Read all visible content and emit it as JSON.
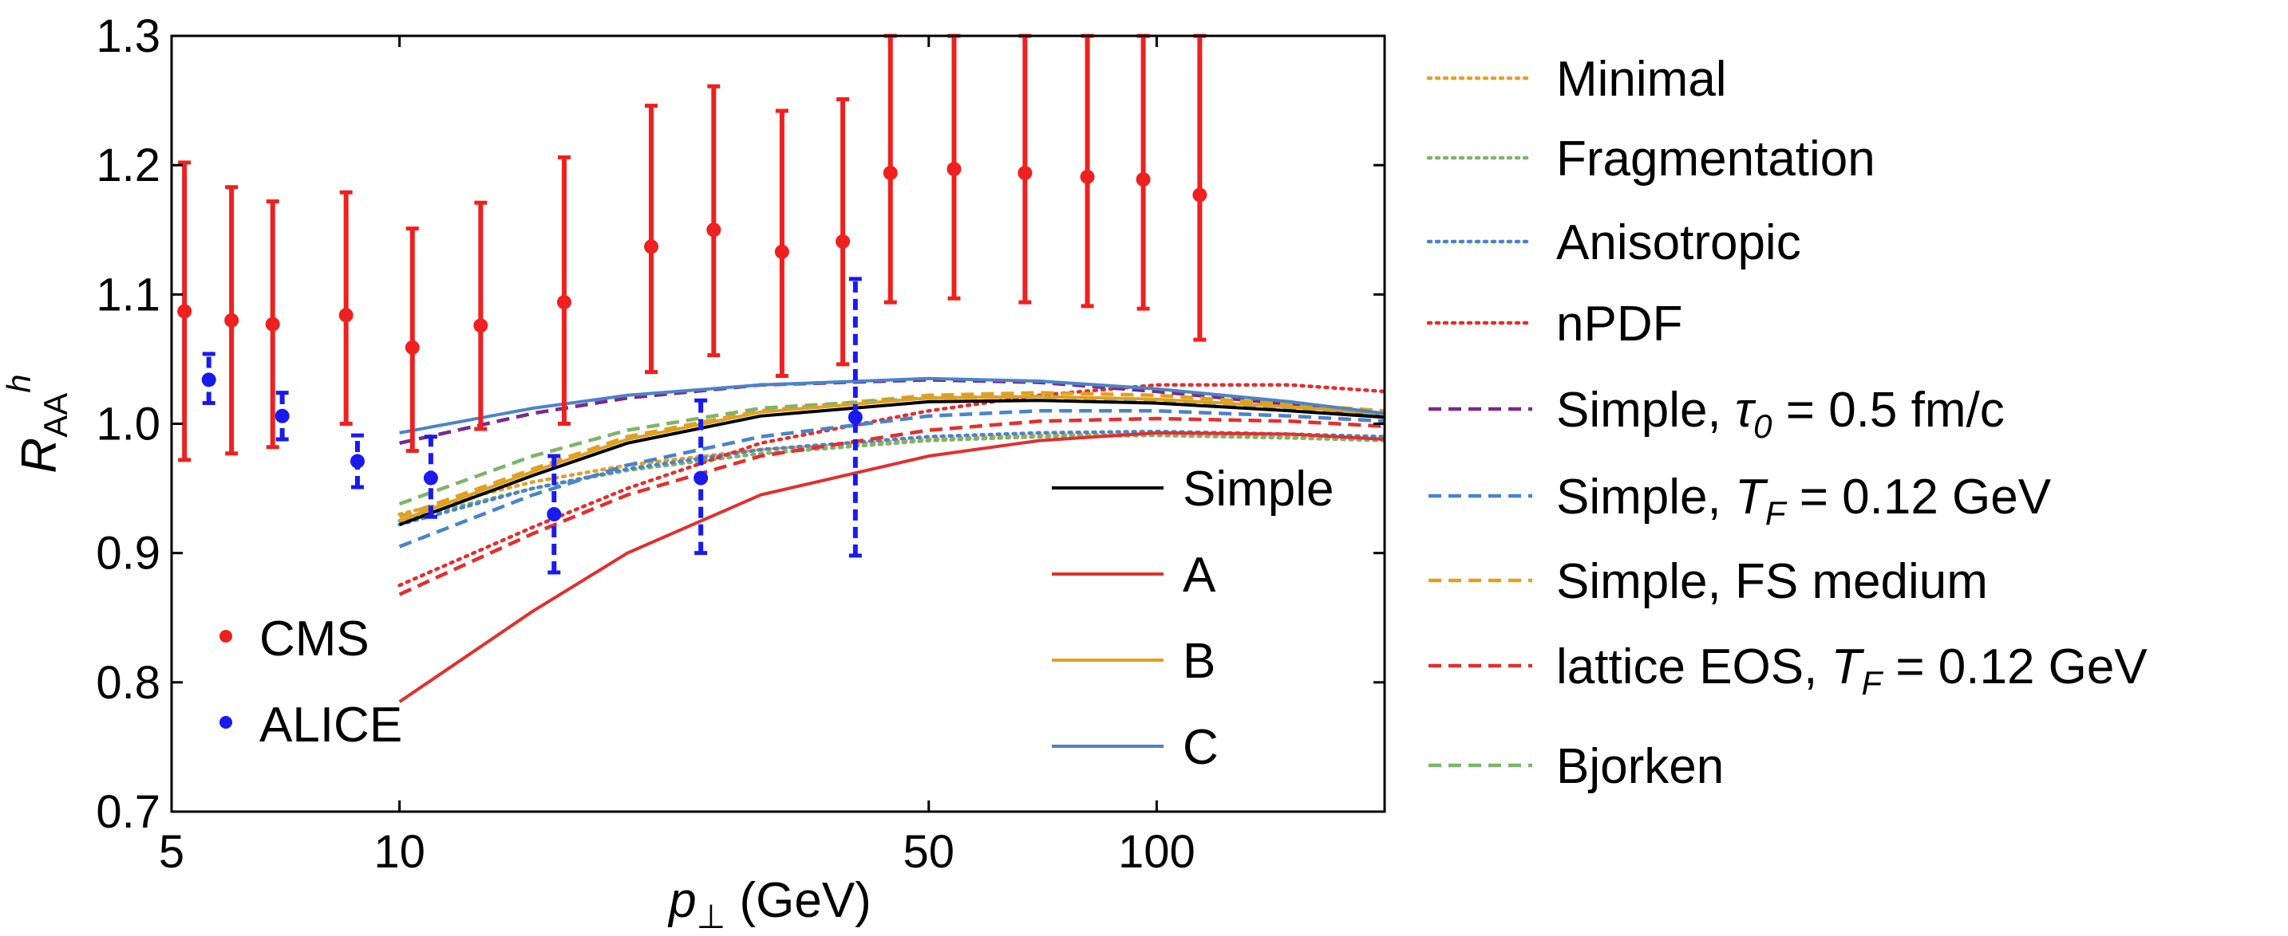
{
  "chart_data": {
    "type": "line",
    "title": "",
    "xlabel": {
      "main": "p",
      "sub": "⊥",
      "unit": " (GeV)"
    },
    "ylabel": {
      "main": "R",
      "sub": "AA",
      "sup": "h"
    },
    "xscale": "log",
    "xlim": [
      5,
      200
    ],
    "ylim": [
      0.7,
      1.3
    ],
    "xticks": [
      {
        "value": 5,
        "label": "5"
      },
      {
        "value": 10,
        "label": "10"
      },
      {
        "value": 50,
        "label": "50"
      },
      {
        "value": 100,
        "label": "100"
      }
    ],
    "yticks": [
      {
        "value": 0.7,
        "label": "0.7"
      },
      {
        "value": 0.8,
        "label": "0.8"
      },
      {
        "value": 0.9,
        "label": "0.9"
      },
      {
        "value": 1.0,
        "label": "1.0"
      },
      {
        "value": 1.1,
        "label": "1.1"
      },
      {
        "value": 1.2,
        "label": "1.2"
      },
      {
        "value": 1.3,
        "label": "1.3"
      }
    ],
    "grid": false,
    "series": [
      {
        "name": "Minimal",
        "style": "dotted",
        "color": "#e0a030",
        "x": [
          10,
          15,
          20,
          30,
          50,
          70,
          100,
          150,
          200
        ],
        "y": [
          0.93,
          0.955,
          0.968,
          0.98,
          0.988,
          0.991,
          0.992,
          0.99,
          0.988
        ]
      },
      {
        "name": "Fragmentation",
        "style": "dotted",
        "color": "#7fb36b",
        "x": [
          10,
          15,
          20,
          30,
          50,
          70,
          100,
          150,
          200
        ],
        "y": [
          0.925,
          0.95,
          0.964,
          0.977,
          0.987,
          0.99,
          0.991,
          0.989,
          0.987
        ]
      },
      {
        "name": "Anisotropic",
        "style": "dotted",
        "color": "#4a84c8",
        "x": [
          10,
          15,
          20,
          30,
          50,
          70,
          100,
          150,
          200
        ],
        "y": [
          0.922,
          0.95,
          0.965,
          0.98,
          0.99,
          0.993,
          0.994,
          0.992,
          0.99
        ]
      },
      {
        "name": "nPDF",
        "style": "dotted",
        "color": "#e03030",
        "x": [
          10,
          15,
          20,
          30,
          50,
          70,
          100,
          150,
          200
        ],
        "y": [
          0.875,
          0.92,
          0.95,
          0.985,
          1.01,
          1.022,
          1.03,
          1.03,
          1.025
        ]
      },
      {
        "name": "Simple, τ₀ = 0.5 fm/c",
        "style": "dashed",
        "color": "#7a2a8a",
        "x": [
          10,
          15,
          20,
          30,
          50,
          70,
          100,
          150,
          200
        ],
        "y": [
          0.985,
          1.008,
          1.02,
          1.03,
          1.034,
          1.032,
          1.025,
          1.015,
          1.005
        ]
      },
      {
        "name": "Simple, T_F = 0.12 GeV",
        "style": "dashed",
        "color": "#4a84c8",
        "x": [
          10,
          15,
          20,
          30,
          50,
          70,
          100,
          150,
          200
        ],
        "y": [
          0.905,
          0.945,
          0.968,
          0.99,
          1.006,
          1.01,
          1.01,
          1.006,
          1.002
        ]
      },
      {
        "name": "Simple, FS medium",
        "style": "dashed",
        "color": "#e0a020",
        "x": [
          10,
          15,
          20,
          30,
          50,
          70,
          100,
          150,
          200
        ],
        "y": [
          0.928,
          0.965,
          0.99,
          1.01,
          1.022,
          1.024,
          1.022,
          1.015,
          1.01
        ]
      },
      {
        "name": "lattice EOS, T_F = 0.12 GeV",
        "style": "dashed",
        "color": "#e03030",
        "x": [
          10,
          15,
          20,
          30,
          50,
          70,
          100,
          150,
          200
        ],
        "y": [
          0.868,
          0.915,
          0.945,
          0.975,
          0.995,
          1.002,
          1.004,
          1.002,
          0.998
        ]
      },
      {
        "name": "Bjorken",
        "style": "dashed",
        "color": "#7fb36b",
        "x": [
          10,
          15,
          20,
          30,
          50,
          70,
          100,
          150,
          200
        ],
        "y": [
          0.938,
          0.975,
          0.995,
          1.012,
          1.02,
          1.021,
          1.018,
          1.012,
          1.007
        ]
      },
      {
        "name": "Simple",
        "style": "solid",
        "color": "#000000",
        "x": [
          10,
          15,
          20,
          30,
          50,
          70,
          100,
          150,
          200
        ],
        "y": [
          0.922,
          0.96,
          0.985,
          1.006,
          1.017,
          1.018,
          1.016,
          1.01,
          1.005
        ]
      },
      {
        "name": "A",
        "style": "solid",
        "color": "#e03030",
        "x": [
          10,
          15,
          20,
          30,
          50,
          70,
          100,
          150,
          200
        ],
        "y": [
          0.785,
          0.855,
          0.9,
          0.945,
          0.975,
          0.987,
          0.993,
          0.992,
          0.988
        ]
      },
      {
        "name": "B",
        "style": "solid",
        "color": "#e0a020",
        "x": [
          10,
          15,
          20,
          30,
          50,
          70,
          100,
          150,
          200
        ],
        "y": [
          0.925,
          0.963,
          0.988,
          1.009,
          1.02,
          1.021,
          1.019,
          1.013,
          1.008
        ]
      },
      {
        "name": "C",
        "style": "solid",
        "color": "#4a84c8",
        "x": [
          10,
          15,
          20,
          30,
          50,
          70,
          100,
          150,
          200
        ],
        "y": [
          0.993,
          1.012,
          1.022,
          1.03,
          1.035,
          1.033,
          1.027,
          1.017,
          1.008
        ]
      }
    ],
    "points": [
      {
        "name": "CMS",
        "color": "#ee2020",
        "bar_style": "solid",
        "x": [
          5.2,
          6.0,
          6.8,
          8.5,
          10.4,
          12.8,
          16.5,
          21.5,
          26.0,
          32.0,
          38.5,
          44.5,
          54.0,
          67.0,
          81.0,
          96.0,
          114.0
        ],
        "y": [
          1.087,
          1.08,
          1.077,
          1.084,
          1.059,
          1.076,
          1.094,
          1.137,
          1.15,
          1.133,
          1.141,
          1.194,
          1.197,
          1.194,
          1.191,
          1.189,
          1.177
        ],
        "yerr_low": [
          0.115,
          0.103,
          0.095,
          0.084,
          0.08,
          0.08,
          0.094,
          0.097,
          0.097,
          0.096,
          0.095,
          0.1,
          0.1,
          0.1,
          0.1,
          0.1,
          0.112
        ],
        "yerr_high": [
          0.115,
          0.103,
          0.095,
          0.095,
          0.092,
          0.095,
          0.112,
          0.109,
          0.111,
          0.109,
          0.11,
          0.106,
          0.103,
          0.106,
          0.109,
          0.111,
          0.123
        ]
      },
      {
        "name": "ALICE",
        "color": "#1a1aee",
        "bar_style": "dashed",
        "x": [
          5.6,
          7.0,
          8.8,
          11.0,
          16.0,
          25.0,
          40.0
        ],
        "y": [
          1.034,
          1.006,
          0.971,
          0.958,
          0.93,
          0.958,
          1.005
        ],
        "yerr_low": [
          0.018,
          0.018,
          0.02,
          0.03,
          0.045,
          0.058,
          0.107
        ],
        "yerr_high": [
          0.02,
          0.018,
          0.02,
          0.032,
          0.045,
          0.06,
          0.107
        ]
      }
    ],
    "legend_points": {
      "position": "bottom-left",
      "entries": [
        "CMS",
        "ALICE"
      ]
    },
    "legend_curves_inner": {
      "position": "bottom-right inside",
      "entries": [
        "Simple",
        "A",
        "B",
        "C"
      ]
    },
    "legend_curves_outer": {
      "position": "right outside",
      "entries": [
        {
          "text": "Minimal"
        },
        {
          "text": "Fragmentation"
        },
        {
          "text": "Anisotropic"
        },
        {
          "text": "nPDF"
        },
        {
          "text": "Simple, ",
          "sym": "τ",
          "sub": "0",
          "rest": " = 0.5 fm/c"
        },
        {
          "text": "Simple, ",
          "sym": "T",
          "sub": "F",
          "rest": " = 0.12 GeV"
        },
        {
          "text": "Simple, FS medium"
        },
        {
          "text": "lattice EOS, ",
          "sym": "T",
          "sub": "F",
          "rest": " = 0.12 GeV"
        },
        {
          "text": "Bjorken"
        }
      ]
    }
  }
}
